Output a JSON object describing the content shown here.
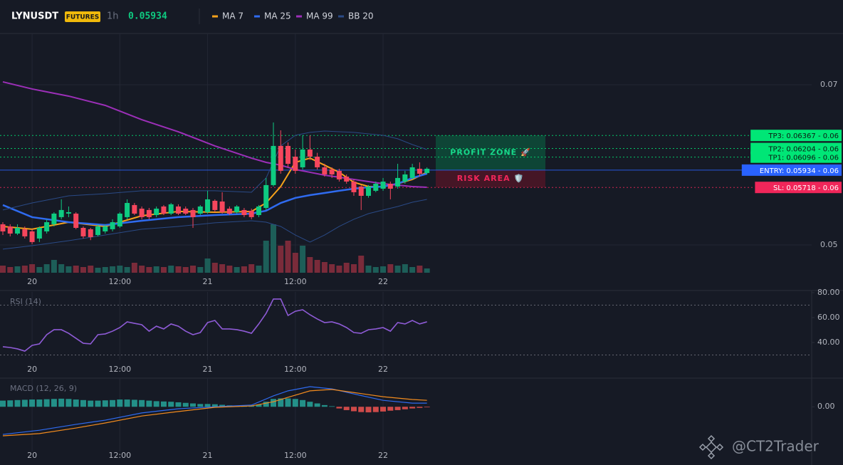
{
  "header": {
    "symbol": "LYNUSDT",
    "badge": "FUTURES",
    "interval": "1h",
    "last_price": 0.05934,
    "watermark": "@CT2Trader"
  },
  "chart_data": [
    {
      "type": "candlestick",
      "categories": [
        null,
        null,
        null,
        null,
        "20",
        null,
        null,
        null,
        null,
        null,
        null,
        null,
        null,
        null,
        null,
        null,
        "12:00",
        null,
        null,
        null,
        null,
        null,
        null,
        null,
        null,
        null,
        null,
        null,
        "21",
        null,
        null,
        null,
        null,
        null,
        null,
        null,
        null,
        null,
        null,
        null,
        "12:00",
        null,
        null,
        null,
        null,
        null,
        null,
        null,
        null,
        null,
        null,
        null,
        "22",
        null,
        null,
        null,
        null,
        null,
        null
      ],
      "candles": [
        {
          "o": 0.05258,
          "h": 0.05284,
          "l": 0.05124,
          "c": 0.05169
        },
        {
          "o": 0.05231,
          "h": 0.05258,
          "l": 0.05107,
          "c": 0.05142
        },
        {
          "o": 0.05142,
          "h": 0.05258,
          "l": 0.05124,
          "c": 0.05213
        },
        {
          "o": 0.05196,
          "h": 0.05231,
          "l": 0.0508,
          "c": 0.05107
        },
        {
          "o": 0.05169,
          "h": 0.05196,
          "l": 0.0501,
          "c": 0.05036
        },
        {
          "o": 0.0508,
          "h": 0.05231,
          "l": 0.05036,
          "c": 0.05213
        },
        {
          "o": 0.05169,
          "h": 0.0532,
          "l": 0.05142,
          "c": 0.05284
        },
        {
          "o": 0.05258,
          "h": 0.05409,
          "l": 0.05231,
          "c": 0.05391
        },
        {
          "o": 0.05347,
          "h": 0.05569,
          "l": 0.0532,
          "c": 0.05436
        },
        {
          "o": 0.05391,
          "h": 0.0548,
          "l": 0.05347,
          "c": 0.05409
        },
        {
          "o": 0.05391,
          "h": 0.05409,
          "l": 0.05196,
          "c": 0.05213
        },
        {
          "o": 0.05213,
          "h": 0.05231,
          "l": 0.0508,
          "c": 0.05107
        },
        {
          "o": 0.05196,
          "h": 0.05213,
          "l": 0.0506,
          "c": 0.05098
        },
        {
          "o": 0.05124,
          "h": 0.05258,
          "l": 0.05107,
          "c": 0.05231
        },
        {
          "o": 0.05169,
          "h": 0.05258,
          "l": 0.05142,
          "c": 0.05231
        },
        {
          "o": 0.05196,
          "h": 0.0532,
          "l": 0.05169,
          "c": 0.05284
        },
        {
          "o": 0.05231,
          "h": 0.05409,
          "l": 0.05213,
          "c": 0.05391
        },
        {
          "o": 0.05347,
          "h": 0.05569,
          "l": 0.0532,
          "c": 0.05524
        },
        {
          "o": 0.05498,
          "h": 0.05524,
          "l": 0.05373,
          "c": 0.05391
        },
        {
          "o": 0.05453,
          "h": 0.0548,
          "l": 0.0532,
          "c": 0.05347
        },
        {
          "o": 0.05436,
          "h": 0.05462,
          "l": 0.0532,
          "c": 0.05347
        },
        {
          "o": 0.05373,
          "h": 0.0548,
          "l": 0.05347,
          "c": 0.05453
        },
        {
          "o": 0.0548,
          "h": 0.05498,
          "l": 0.05373,
          "c": 0.05391
        },
        {
          "o": 0.05391,
          "h": 0.05524,
          "l": 0.05373,
          "c": 0.05507
        },
        {
          "o": 0.0548,
          "h": 0.05507,
          "l": 0.05373,
          "c": 0.05391
        },
        {
          "o": 0.05453,
          "h": 0.0548,
          "l": 0.05373,
          "c": 0.05391
        },
        {
          "o": 0.05436,
          "h": 0.05462,
          "l": 0.05213,
          "c": 0.05347
        },
        {
          "o": 0.05391,
          "h": 0.05498,
          "l": 0.05373,
          "c": 0.0548
        },
        {
          "o": 0.05409,
          "h": 0.05676,
          "l": 0.05391,
          "c": 0.05569
        },
        {
          "o": 0.05551,
          "h": 0.05569,
          "l": 0.05409,
          "c": 0.05436
        },
        {
          "o": 0.05542,
          "h": 0.05658,
          "l": 0.05391,
          "c": 0.05409
        },
        {
          "o": 0.05453,
          "h": 0.0548,
          "l": 0.05373,
          "c": 0.05391
        },
        {
          "o": 0.05409,
          "h": 0.05498,
          "l": 0.05391,
          "c": 0.0548
        },
        {
          "o": 0.05436,
          "h": 0.05462,
          "l": 0.05347,
          "c": 0.05373
        },
        {
          "o": 0.05427,
          "h": 0.05453,
          "l": 0.0532,
          "c": 0.05347
        },
        {
          "o": 0.05373,
          "h": 0.05498,
          "l": 0.05347,
          "c": 0.0548
        },
        {
          "o": 0.05462,
          "h": 0.05836,
          "l": 0.05436,
          "c": 0.05747
        },
        {
          "o": 0.05747,
          "h": 0.06529,
          "l": 0.05729,
          "c": 0.06236
        },
        {
          "o": 0.06236,
          "h": 0.06431,
          "l": 0.05889,
          "c": 0.05925
        },
        {
          "o": 0.06236,
          "h": 0.0628,
          "l": 0.05969,
          "c": 0.06013
        },
        {
          "o": 0.06102,
          "h": 0.06191,
          "l": 0.05889,
          "c": 0.05925
        },
        {
          "o": 0.05969,
          "h": 0.06369,
          "l": 0.05942,
          "c": 0.06191
        },
        {
          "o": 0.06191,
          "h": 0.06369,
          "l": 0.0606,
          "c": 0.06102
        },
        {
          "o": 0.06102,
          "h": 0.0615,
          "l": 0.05942,
          "c": 0.05969
        },
        {
          "o": 0.05969,
          "h": 0.06013,
          "l": 0.05853,
          "c": 0.0588
        },
        {
          "o": 0.05942,
          "h": 0.05969,
          "l": 0.05836,
          "c": 0.0588
        },
        {
          "o": 0.05925,
          "h": 0.05951,
          "l": 0.05791,
          "c": 0.05818
        },
        {
          "o": 0.05853,
          "h": 0.0588,
          "l": 0.05764,
          "c": 0.05791
        },
        {
          "o": 0.05791,
          "h": 0.05818,
          "l": 0.05613,
          "c": 0.05658
        },
        {
          "o": 0.05729,
          "h": 0.05747,
          "l": 0.05436,
          "c": 0.05613
        },
        {
          "o": 0.05613,
          "h": 0.05747,
          "l": 0.0559,
          "c": 0.05729
        },
        {
          "o": 0.05676,
          "h": 0.05791,
          "l": 0.05658,
          "c": 0.05764
        },
        {
          "o": 0.05702,
          "h": 0.05836,
          "l": 0.05676,
          "c": 0.05791
        },
        {
          "o": 0.05764,
          "h": 0.05791,
          "l": 0.05569,
          "c": 0.05702
        },
        {
          "o": 0.05729,
          "h": 0.06013,
          "l": 0.05702,
          "c": 0.05836
        },
        {
          "o": 0.05791,
          "h": 0.05925,
          "l": 0.05764,
          "c": 0.0588
        },
        {
          "o": 0.05836,
          "h": 0.06013,
          "l": 0.05818,
          "c": 0.05969
        },
        {
          "o": 0.05951,
          "h": 0.06031,
          "l": 0.05853,
          "c": 0.05889
        },
        {
          "o": 0.05898,
          "h": 0.05969,
          "l": 0.0588,
          "c": 0.05951
        }
      ],
      "up_color": "#0ecb81",
      "down_color": "#f6465d",
      "volume_up_color": "#1d5e58",
      "volume_down_color": "#7a2b3a",
      "volume": [
        10,
        8,
        9,
        10,
        12,
        8,
        12,
        18,
        12,
        9,
        10,
        8,
        10,
        7,
        8,
        9,
        10,
        8,
        14,
        10,
        8,
        9,
        8,
        10,
        9,
        8,
        10,
        8,
        20,
        14,
        12,
        10,
        8,
        9,
        12,
        10,
        45,
        68,
        38,
        45,
        28,
        38,
        22,
        18,
        15,
        12,
        10,
        14,
        12,
        24,
        10,
        8,
        9,
        12,
        10,
        12,
        8,
        10,
        6
      ],
      "volume_lim": [
        0,
        100
      ],
      "ylim": [
        0.04653,
        0.07631
      ],
      "yticks": [
        0.05,
        0.07
      ],
      "grid": true,
      "lines": [
        {
          "name": "MA 7",
          "color": "#f7a21b",
          "width": 2,
          "x": [
            0,
            4,
            9,
            14,
            19,
            24,
            29,
            34,
            36,
            38,
            40,
            42,
            44,
            46,
            48,
            50,
            52,
            54,
            56,
            58
          ],
          "values": [
            0.05231,
            0.05196,
            0.05284,
            0.05231,
            0.05364,
            0.05418,
            0.05409,
            0.05418,
            0.05524,
            0.05729,
            0.06031,
            0.06084,
            0.05996,
            0.05907,
            0.05782,
            0.05729,
            0.05729,
            0.05764,
            0.05818,
            0.05907
          ]
        },
        {
          "name": "MA 25",
          "color": "#2f6bf0",
          "width": 2.5,
          "x": [
            0,
            4,
            9,
            14,
            19,
            24,
            29,
            34,
            36,
            38,
            40,
            42,
            44,
            46,
            48,
            50,
            52,
            54,
            56,
            58
          ],
          "values": [
            0.05498,
            0.05347,
            0.05284,
            0.05249,
            0.05302,
            0.05347,
            0.05373,
            0.05391,
            0.05427,
            0.05524,
            0.05587,
            0.05622,
            0.05649,
            0.05676,
            0.05702,
            0.0572,
            0.05729,
            0.05764,
            0.05836,
            0.05889
          ]
        },
        {
          "name": "MA 99",
          "color": "#9c2fb8",
          "width": 2,
          "x": [
            0,
            4,
            9,
            14,
            19,
            24,
            29,
            34,
            36,
            38,
            40,
            42,
            44,
            46,
            48,
            50,
            52,
            54,
            56,
            58
          ],
          "values": [
            0.07036,
            0.06947,
            0.06858,
            0.06742,
            0.06564,
            0.06413,
            0.06236,
            0.06084,
            0.06031,
            0.05996,
            0.05942,
            0.05907,
            0.05871,
            0.05845,
            0.05818,
            0.05791,
            0.05764,
            0.05747,
            0.05729,
            0.0572
          ]
        },
        {
          "name": "BB 20",
          "color": "#2a4a86",
          "width": 1,
          "x": [
            0,
            4,
            9,
            14,
            19,
            24,
            29,
            34,
            36,
            38,
            40,
            42,
            44,
            46,
            48,
            50,
            52,
            54,
            56,
            58
          ],
          "values": [
            0.05436,
            0.05524,
            0.05613,
            0.0564,
            0.05676,
            0.05676,
            0.05676,
            0.05658,
            0.05836,
            0.06236,
            0.06369,
            0.06405,
            0.06422,
            0.06413,
            0.06405,
            0.06387,
            0.06369,
            0.06325,
            0.06253,
            0.06191
          ],
          "lower": [
            0.04947,
            0.04991,
            0.05053,
            0.05124,
            0.05196,
            0.05231,
            0.05276,
            0.05302,
            0.05284,
            0.05231,
            0.05124,
            0.05036,
            0.05124,
            0.05231,
            0.0532,
            0.05391,
            0.05436,
            0.0548,
            0.05533,
            0.05569
          ]
        }
      ],
      "levels": [
        {
          "value": 0.06367,
          "label": "TP3: 0.06367 - 0.06",
          "color": "#00e676",
          "text_color": "#0b1a12",
          "dash": true
        },
        {
          "value": 0.06204,
          "label": "TP2: 0.06204 - 0.06",
          "color": "#00e676",
          "text_color": "#0b1a12",
          "dash": true
        },
        {
          "value": 0.06096,
          "label": "TP1: 0.06096 - 0.06",
          "color": "#00e676",
          "text_color": "#0b1a12",
          "dash": true
        },
        {
          "value": 0.05934,
          "label": "ENTRY: 0.05934 - 0.06",
          "color": "#2962ff",
          "text_color": "#ffffff",
          "dash": false
        },
        {
          "value": 0.05718,
          "label": "SL: 0.05718 - 0.06",
          "color": "#f0265a",
          "text_color": "#ffffff",
          "dash": true
        }
      ],
      "zones": [
        {
          "label": "PROFIT ZONE 🚀",
          "color": "#0d4a38",
          "text_color": "#17d98a"
        },
        {
          "label": "RISK AREA 🛡️",
          "color": "#4a1627",
          "text_color": "#f0265a"
        }
      ]
    },
    {
      "type": "line",
      "title": "RSI (14)",
      "color": "#8e5bd6",
      "values": [
        36.6,
        36.0,
        34.9,
        33.1,
        37.7,
        38.9,
        46.3,
        50.3,
        50.3,
        47.4,
        43.4,
        39.4,
        38.9,
        46.3,
        46.9,
        49.1,
        52.0,
        56.6,
        55.4,
        54.3,
        49.1,
        53.1,
        50.9,
        54.9,
        53.1,
        49.1,
        46.3,
        48.0,
        56.0,
        57.7,
        50.9,
        50.9,
        50.3,
        49.1,
        47.4,
        54.9,
        63.4,
        74.9,
        74.9,
        61.7,
        65.1,
        66.3,
        62.3,
        58.9,
        56.0,
        56.6,
        54.9,
        52.0,
        48.0,
        47.4,
        50.3,
        50.9,
        52.0,
        49.1,
        56.0,
        54.9,
        57.7,
        54.9,
        56.6
      ],
      "ylim": [
        26,
        80
      ],
      "yticks": [
        {
          "value": 40,
          "label": "40.00"
        },
        {
          "value": 60,
          "label": "60.00"
        },
        {
          "value": 80,
          "label": "80.00"
        }
      ],
      "bands": [
        30,
        70
      ]
    },
    {
      "type": "macd",
      "title": "MACD (12, 26, 9)",
      "ylim": [
        -0.0016,
        0.001
      ],
      "yticks": [
        {
          "value": 0,
          "label": "0.00"
        }
      ],
      "hist_up_color": "#26a69a",
      "hist_down_color": "#ef5350",
      "histogram": [
        0.00022,
        0.00023,
        0.00024,
        0.00025,
        0.00026,
        0.00026,
        0.00027,
        0.00028,
        0.00029,
        0.00028,
        0.00026,
        0.00024,
        0.00022,
        0.00022,
        0.00023,
        0.00024,
        0.00026,
        0.00026,
        0.00025,
        0.00024,
        0.00022,
        0.0002,
        0.00019,
        0.00018,
        0.00016,
        0.00014,
        0.00012,
        0.0001,
        0.0001,
        9e-05,
        7e-05,
        5e-05,
        4e-05,
        3e-05,
        3e-05,
        8e-05,
        0.00018,
        0.00028,
        0.0003,
        0.0003,
        0.00028,
        0.00024,
        0.00018,
        0.00012,
        6e-05,
        2e-05,
        -6e-05,
        -0.00012,
        -0.00016,
        -0.00019,
        -0.0002,
        -0.00019,
        -0.00017,
        -0.00014,
        -0.00012,
        -9e-05,
        -6e-05,
        -4e-05,
        -2e-05
      ],
      "lines": [
        {
          "color": "#2f6bf0",
          "x": [
            0,
            5,
            10,
            14,
            19,
            24,
            29,
            34,
            37,
            39,
            42,
            45,
            48,
            52,
            56,
            58
          ],
          "values": [
            -0.00099,
            -0.00084,
            -0.00063,
            -0.00048,
            -0.00022,
            -7e-05,
            0,
            6e-05,
            0.00039,
            0.00057,
            0.00072,
            0.00064,
            0.00046,
            0.00023,
            0.00013,
            0.00013
          ]
        },
        {
          "color": "#f28b1e",
          "x": [
            0,
            5,
            10,
            14,
            19,
            24,
            29,
            34,
            37,
            39,
            42,
            45,
            48,
            52,
            56,
            58
          ],
          "values": [
            -0.00104,
            -0.00096,
            -0.00076,
            -0.00058,
            -0.00033,
            -0.00017,
            -2e-05,
            3e-05,
            0.00018,
            0.00034,
            0.00057,
            0.00062,
            0.00051,
            0.00036,
            0.00026,
            0.00023
          ]
        }
      ]
    }
  ]
}
